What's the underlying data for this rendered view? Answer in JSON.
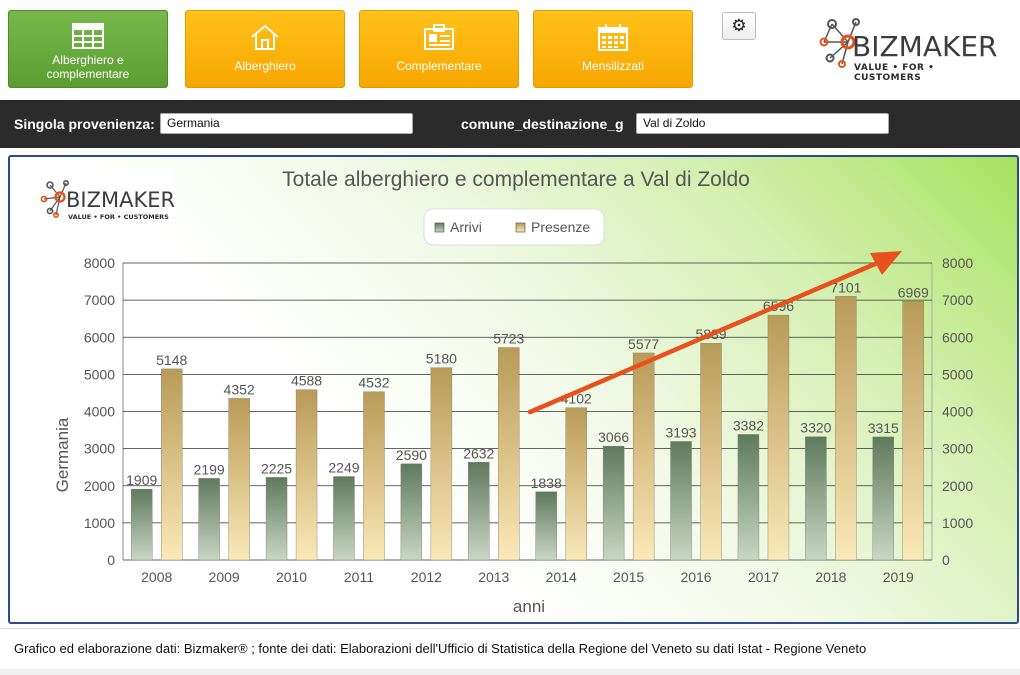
{
  "nav": {
    "buttons": [
      {
        "label": "Alberghiero e complementare",
        "icon": "table-icon",
        "active": true
      },
      {
        "label": "Alberghiero",
        "icon": "house-icon",
        "active": false
      },
      {
        "label": "Complementare",
        "icon": "card-icon",
        "active": false
      },
      {
        "label": "Mensilizzati",
        "icon": "calendar-icon",
        "active": false
      }
    ],
    "settings_glyph": "⚙"
  },
  "brand": {
    "name_a": "BIZ",
    "name_b": "MAKER",
    "tagline": "VALUE • FOR • CUSTOMERS"
  },
  "filters": {
    "provenienza_label": "Singola provenienza:",
    "provenienza_value": "Germania",
    "destinazione_label": "comune_destinazione_g",
    "destinazione_value": "Val di Zoldo"
  },
  "colors": {
    "arrivi": "#6f8a6a",
    "presenze": "#c9a862",
    "arrow": "#e8501c",
    "filterbar": "#2b2b2b"
  },
  "chart_data": {
    "type": "bar",
    "title": "Totale alberghiero e complementare a Val di Zoldo",
    "xlabel": "anni",
    "ylabel": "Germania",
    "ylim": [
      0,
      8000
    ],
    "yticks": [
      0,
      1000,
      2000,
      3000,
      4000,
      5000,
      6000,
      7000,
      8000
    ],
    "grid": true,
    "legend_position": "top-center",
    "categories": [
      "2008",
      "2009",
      "2010",
      "2011",
      "2012",
      "2013",
      "2014",
      "2015",
      "2016",
      "2017",
      "2018",
      "2019"
    ],
    "series": [
      {
        "name": "Arrivi",
        "values": [
          1909,
          2199,
          2225,
          2249,
          2590,
          2632,
          1838,
          3066,
          3193,
          3382,
          3320,
          3315
        ]
      },
      {
        "name": "Presenze",
        "values": [
          5148,
          4352,
          4588,
          4532,
          5180,
          5723,
          4102,
          5577,
          5839,
          6596,
          7101,
          6969
        ]
      }
    ],
    "annotation": "trend-arrow"
  },
  "footer": {
    "source": "Grafico ed elaborazione dati: Bizmaker® ; fonte dei dati: Elaborazioni dell'Ufficio di Statistica della Regione del Veneto  su dati Istat - Regione Veneto"
  }
}
